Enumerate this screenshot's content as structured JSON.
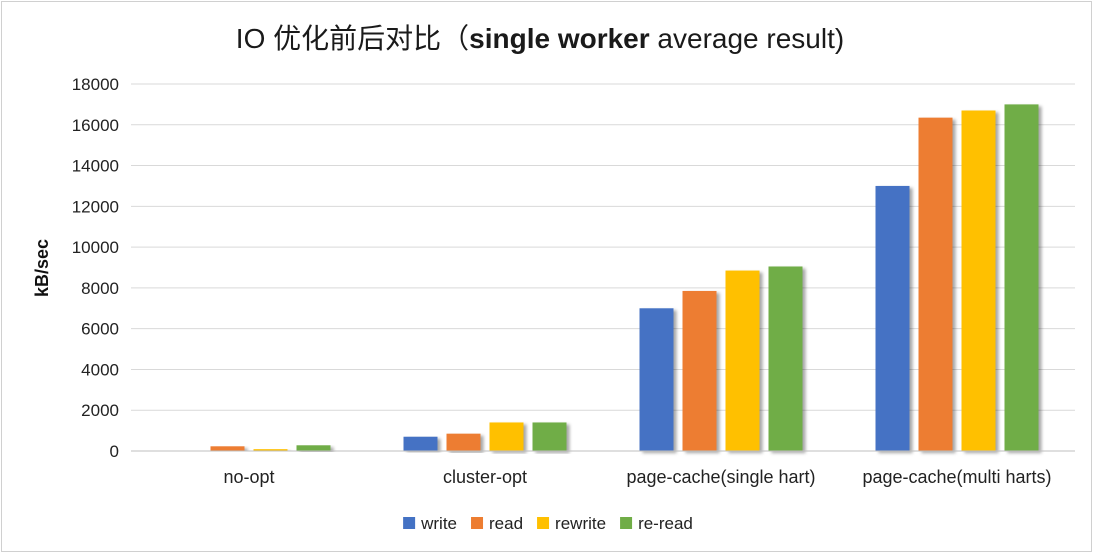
{
  "chart_data": {
    "type": "bar",
    "title": {
      "prefix": "IO 优化前后对比（",
      "bold": "single worker",
      "suffix": " average result)"
    },
    "xlabel": "",
    "ylabel": "kB/sec",
    "ylim": [
      0,
      18000
    ],
    "yticks": [
      0,
      2000,
      4000,
      6000,
      8000,
      10000,
      12000,
      14000,
      16000,
      18000
    ],
    "grid": true,
    "legend_position": "bottom",
    "categories": [
      "no-opt",
      "cluster-opt",
      "page-cache(single hart)",
      "page-cache(multi harts)"
    ],
    "series": [
      {
        "name": "write",
        "color": "#4472C4",
        "values": [
          0,
          700,
          7000,
          13000
        ]
      },
      {
        "name": "read",
        "color": "#ED7D31",
        "values": [
          230,
          850,
          7850,
          16350
        ]
      },
      {
        "name": "rewrite",
        "color": "#FFC000",
        "values": [
          90,
          1400,
          8850,
          16700
        ]
      },
      {
        "name": "re-read",
        "color": "#70AD47",
        "values": [
          280,
          1400,
          9050,
          17000
        ]
      }
    ]
  }
}
